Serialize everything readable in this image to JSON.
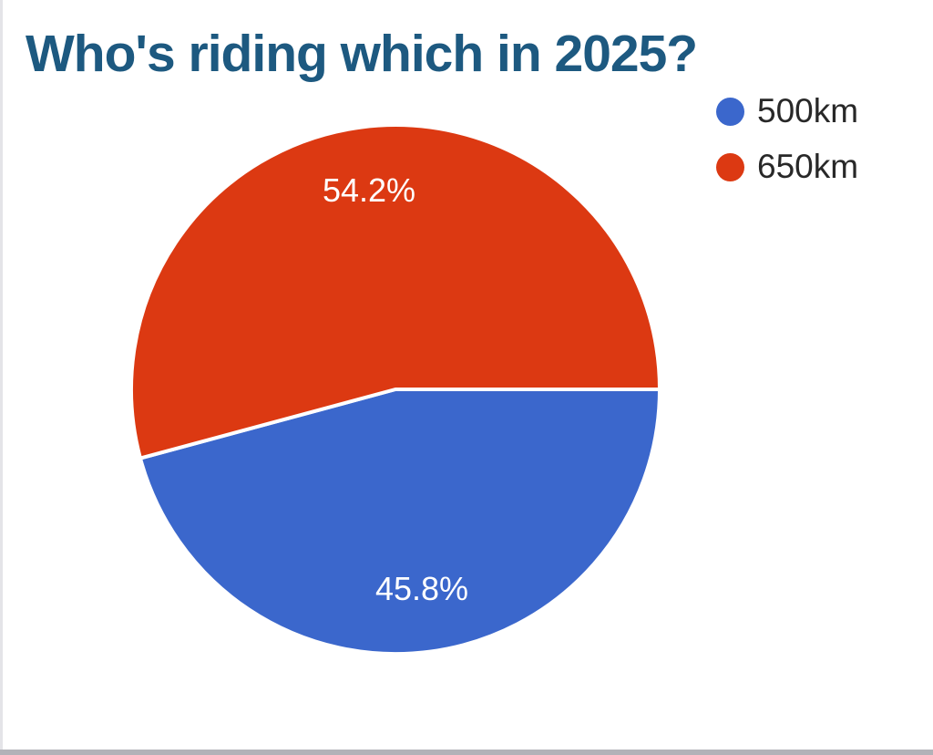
{
  "page": {
    "title": "Who's riding which in 2025?"
  },
  "colors": {
    "title_text": "#1d5980",
    "legend_text": "#282828",
    "slice_label_text": "#ffffff",
    "page_left_edge": "#e4e4e8",
    "page_bottom_bar": "#b2b2b8"
  },
  "legend": {
    "items": [
      {
        "label": "500km",
        "color": "#3b67cc"
      },
      {
        "label": "650km",
        "color": "#dc3912"
      }
    ]
  },
  "chart_data": {
    "type": "pie",
    "title": "Who's riding which in 2025?",
    "categories": [
      "500km",
      "650km"
    ],
    "values": [
      45.8,
      54.2
    ],
    "value_labels": [
      "45.8%",
      "54.2%"
    ],
    "colors": [
      "#3b67cc",
      "#dc3912"
    ],
    "legend_position": "top-right",
    "start_angle_deg": 0,
    "direction": "clockwise",
    "slice_border_color": "#ffffff",
    "label_color": "#ffffff"
  }
}
